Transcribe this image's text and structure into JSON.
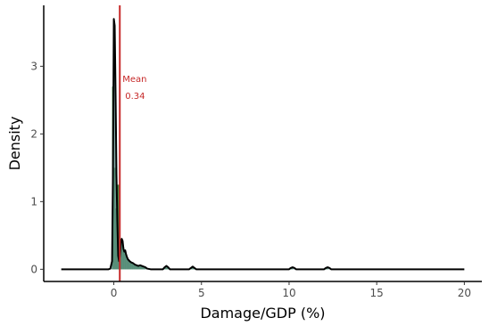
{
  "chart_data": {
    "type": "area",
    "xlabel": "Damage/GDP (%)",
    "ylabel": "Density",
    "xlim": [
      -4,
      21
    ],
    "ylim": [
      -0.18,
      3.9
    ],
    "x_ticks": [
      0,
      5,
      10,
      15,
      20
    ],
    "x_tick_labels": [
      "0",
      "5",
      "10",
      "15",
      "20"
    ],
    "y_ticks": [
      0,
      1,
      2,
      3
    ],
    "y_tick_labels": [
      "0",
      "1",
      "2",
      "3"
    ],
    "grid": false,
    "legend": "none",
    "colors": {
      "histogram": "#2e7d32",
      "density_fill": "#5f8f8a",
      "density_line": "#000000",
      "mean_line": "#c62828",
      "axis": "#000000"
    },
    "histogram": {
      "name": "",
      "bin_width": 0.1,
      "bins": [
        {
          "x": -0.05,
          "y": 2.7
        },
        {
          "x": 0.05,
          "y": 1.5
        },
        {
          "x": 0.15,
          "y": 0.9
        },
        {
          "x": 0.25,
          "y": 1.25
        },
        {
          "x": 0.35,
          "y": 0.45
        },
        {
          "x": 0.45,
          "y": 0.38
        },
        {
          "x": 0.55,
          "y": 0.32
        },
        {
          "x": 0.65,
          "y": 0.25
        },
        {
          "x": 0.75,
          "y": 0.18
        },
        {
          "x": 0.85,
          "y": 0.14
        },
        {
          "x": 0.95,
          "y": 0.12
        },
        {
          "x": 1.05,
          "y": 0.1
        },
        {
          "x": 1.15,
          "y": 0.08
        },
        {
          "x": 1.25,
          "y": 0.06
        },
        {
          "x": 1.35,
          "y": 0.05
        },
        {
          "x": 1.45,
          "y": 0.04
        },
        {
          "x": 1.55,
          "y": 0.05
        },
        {
          "x": 1.65,
          "y": 0.04
        },
        {
          "x": 1.75,
          "y": 0.02
        },
        {
          "x": 2.95,
          "y": 0.04
        },
        {
          "x": 3.05,
          "y": 0.04
        },
        {
          "x": 4.45,
          "y": 0.03
        },
        {
          "x": 4.55,
          "y": 0.02
        },
        {
          "x": 10.15,
          "y": 0.02
        },
        {
          "x": 12.15,
          "y": 0.02
        }
      ]
    },
    "density": {
      "name": "",
      "x": [
        -3,
        -0.3,
        -0.2,
        -0.1,
        -0.05,
        0,
        0.05,
        0.1,
        0.15,
        0.2,
        0.25,
        0.3,
        0.35,
        0.4,
        0.45,
        0.5,
        0.55,
        0.6,
        0.65,
        0.7,
        0.75,
        0.8,
        0.9,
        1.0,
        1.1,
        1.2,
        1.3,
        1.4,
        1.5,
        1.6,
        1.7,
        1.8,
        1.9,
        2.1,
        2.8,
        2.9,
        3.0,
        3.1,
        3.2,
        4.3,
        4.4,
        4.5,
        4.6,
        4.7,
        10.0,
        10.1,
        10.2,
        10.3,
        10.4,
        12.0,
        12.1,
        12.2,
        12.3,
        12.4,
        20
      ],
      "y": [
        0,
        0,
        0.01,
        0.12,
        1.4,
        3.7,
        3.6,
        2.6,
        1.4,
        0.7,
        0.2,
        0.12,
        0.2,
        0.38,
        0.45,
        0.42,
        0.3,
        0.26,
        0.28,
        0.22,
        0.18,
        0.15,
        0.12,
        0.1,
        0.09,
        0.07,
        0.06,
        0.05,
        0.06,
        0.05,
        0.04,
        0.03,
        0.01,
        0,
        0,
        0.03,
        0.05,
        0.03,
        0,
        0,
        0.02,
        0.04,
        0.02,
        0,
        0,
        0.02,
        0.03,
        0.02,
        0,
        0,
        0.02,
        0.03,
        0.02,
        0,
        0
      ]
    },
    "mean_line": {
      "x": 0.34,
      "label": "Mean",
      "value_label": "0.34"
    }
  }
}
